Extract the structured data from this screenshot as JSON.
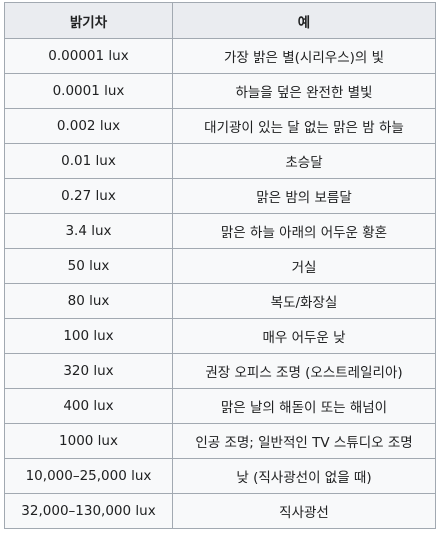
{
  "table": {
    "headers": [
      "밝기차",
      "예"
    ],
    "rows": [
      {
        "lux": "0.00001 lux",
        "example": "가장 밝은 별(시리우스)의 빛"
      },
      {
        "lux": "0.0001 lux",
        "example": "하늘을 덮은 완전한 별빛"
      },
      {
        "lux": "0.002 lux",
        "example": "대기광이 있는 달 없는 맑은 밤 하늘"
      },
      {
        "lux": "0.01 lux",
        "example": "초승달"
      },
      {
        "lux": "0.27 lux",
        "example": "맑은 밤의 보름달"
      },
      {
        "lux": "3.4 lux",
        "example": "맑은 하늘 아래의 어두운 황혼"
      },
      {
        "lux": "50 lux",
        "example": "거실"
      },
      {
        "lux": "80 lux",
        "example": "복도/화장실"
      },
      {
        "lux": "100 lux",
        "example": "매우 어두운 낮"
      },
      {
        "lux": "320 lux",
        "example": "권장 오피스 조명 (오스트레일리아)"
      },
      {
        "lux": "400 lux",
        "example": "맑은 날의 해돋이 또는 해넘이"
      },
      {
        "lux": "1000 lux",
        "example": "인공 조명; 일반적인 TV 스튜디오 조명"
      },
      {
        "lux": "10,000–25,000 lux",
        "example": "낮 (직사광선이 없을 때)"
      },
      {
        "lux": "32,000–130,000 lux",
        "example": "직사광선"
      }
    ]
  }
}
